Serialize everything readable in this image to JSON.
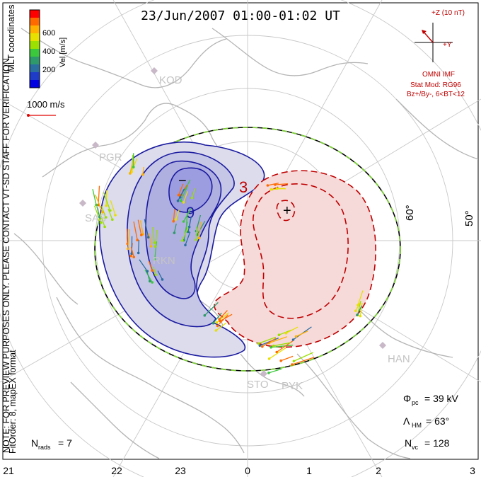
{
  "title": "23/Jun/2007 01:00-01:02 UT",
  "coordinates": "MLT coordinates",
  "preview_note": "NOTE: FOR PREVIEW PURPOSES ONLY. PLEASE CONTACT VT-SD STAFF FOR VERIFICATION.",
  "fit_info": "FitOrder: 8, mapEX format",
  "colorbar": {
    "label": "Vel [m/s]",
    "ticks": [
      "600",
      "400",
      "200"
    ],
    "colors": [
      "#ff0000",
      "#ff6a00",
      "#ffb000",
      "#e8e000",
      "#9be000",
      "#3cc83c",
      "#2e9a6c",
      "#2a6ea0",
      "#1e3cc8",
      "#0000e0"
    ]
  },
  "ref_vector_label": "1000 m/s",
  "imf": {
    "bz_label": "+Z (10 nT)",
    "by_label": "+Y",
    "source": "OMNI IMF",
    "model": "Stat Mod: RG96",
    "condition": "Bz+/By-, 6<BT<12"
  },
  "latitude_labels": [
    "60°",
    "50°"
  ],
  "mlt_labels": [
    "21",
    "22",
    "23",
    "0",
    "1",
    "2",
    "3"
  ],
  "stations": [
    "KOD",
    "PGR",
    "SAS",
    "RKN",
    "HAN",
    "STO",
    "PYK"
  ],
  "contour_labels": {
    "min": "−",
    "max": "+",
    "neg": "9",
    "pos": "3"
  },
  "stats": {
    "n_rads_sym": "N",
    "n_rads_sub": "rads",
    "n_rads": "= 7",
    "phi_sym": "Φ",
    "phi_sub": "pc",
    "phi_pc": "= 39 kV",
    "lambda_sym": "Λ",
    "lambda_sub": "HM",
    "lambda_hm": "= 63°",
    "nvc_sym": "N",
    "nvc_sub": "vc",
    "n_vc": "= 128"
  }
}
